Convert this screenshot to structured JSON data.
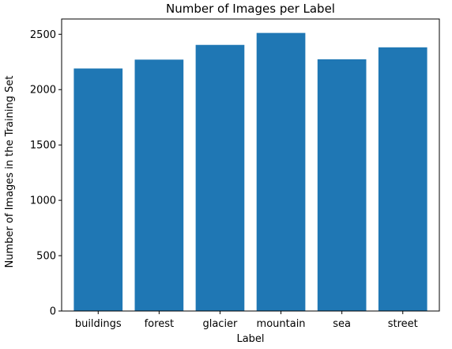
{
  "chart_data": {
    "type": "bar",
    "title": "Number of Images per Label",
    "xlabel": "Label",
    "ylabel": "Number of Images in the Training Set",
    "categories": [
      "buildings",
      "forest",
      "glacier",
      "mountain",
      "sea",
      "street"
    ],
    "values": [
      2191,
      2271,
      2404,
      2512,
      2274,
      2382
    ],
    "ylim": [
      0,
      2638
    ],
    "yticks": [
      0,
      500,
      1000,
      1500,
      2000,
      2500
    ],
    "grid": false,
    "bar_color": "#1f77b4"
  }
}
